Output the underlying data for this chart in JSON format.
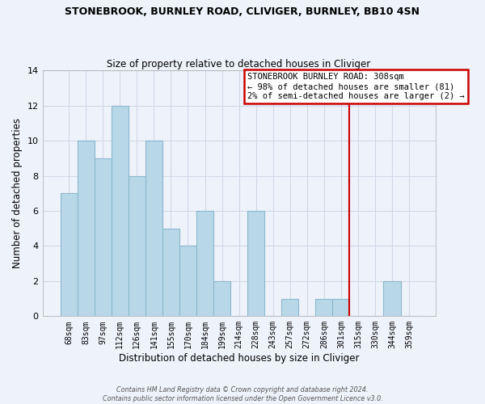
{
  "title": "STONEBROOK, BURNLEY ROAD, CLIVIGER, BURNLEY, BB10 4SN",
  "subtitle": "Size of property relative to detached houses in Cliviger",
  "xlabel": "Distribution of detached houses by size in Cliviger",
  "ylabel": "Number of detached properties",
  "bar_labels": [
    "68sqm",
    "83sqm",
    "97sqm",
    "112sqm",
    "126sqm",
    "141sqm",
    "155sqm",
    "170sqm",
    "184sqm",
    "199sqm",
    "214sqm",
    "228sqm",
    "243sqm",
    "257sqm",
    "272sqm",
    "286sqm",
    "301sqm",
    "315sqm",
    "330sqm",
    "344sqm",
    "359sqm"
  ],
  "bar_values": [
    7,
    10,
    9,
    12,
    8,
    10,
    5,
    4,
    6,
    2,
    0,
    6,
    0,
    1,
    0,
    1,
    1,
    0,
    0,
    2,
    0
  ],
  "bar_color": "#b8d8e8",
  "bar_edge_color": "#8ab8cc",
  "vline_color": "#cc0000",
  "ylim": [
    0,
    14
  ],
  "yticks": [
    0,
    2,
    4,
    6,
    8,
    10,
    12,
    14
  ],
  "annotation_title": "STONEBROOK BURNLEY ROAD: 308sqm",
  "annotation_line1": "← 98% of detached houses are smaller (81)",
  "annotation_line2": "2% of semi-detached houses are larger (2) →",
  "annotation_box_color": "#ffffff",
  "annotation_box_edge": "#cc0000",
  "footer1": "Contains HM Land Registry data © Crown copyright and database right 2024.",
  "footer2": "Contains public sector information licensed under the Open Government Licence v3.0.",
  "grid_color": "#d0d8e8",
  "background_color": "#eef2fa"
}
